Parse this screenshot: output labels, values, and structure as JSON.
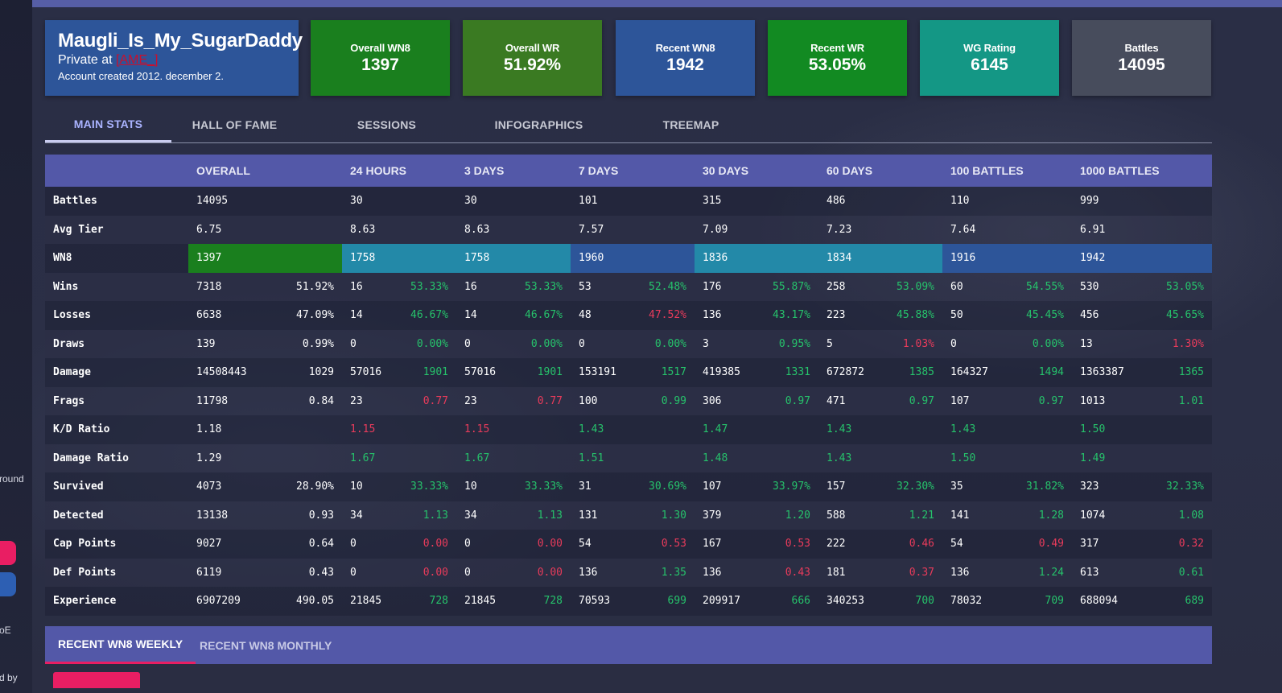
{
  "sidebar": {
    "partial_text_1": "round",
    "partial_text_2": "oE",
    "partial_text_3": "d by",
    "button_colors": [
      "#e91e63",
      "#2d5fb3"
    ]
  },
  "profile": {
    "name": "Maugli_Is_My_SugarDaddy",
    "clan_prefix": "Private at ",
    "clan_tag": "[AME_]",
    "created": "Account created 2012. december 2."
  },
  "summary_cards": [
    {
      "label": "Overall WN8",
      "value": "1397",
      "color": "#1a7f1e"
    },
    {
      "label": "Overall WR",
      "value": "51.92%",
      "color": "#3a7a22"
    },
    {
      "label": "Recent WN8",
      "value": "1942",
      "color": "#2d5599"
    },
    {
      "label": "Recent WR",
      "value": "53.05%",
      "color": "#128a22"
    },
    {
      "label": "WG Rating",
      "value": "6145",
      "color": "#149785"
    },
    {
      "label": "Battles",
      "value": "14095",
      "color": "#474c5c"
    }
  ],
  "tabs": [
    "MAIN STATS",
    "HALL OF FAME",
    "SESSIONS",
    "INFOGRAPHICS",
    "TREEMAP"
  ],
  "active_tab": "MAIN STATS",
  "table": {
    "headers": [
      "OVERALL",
      "24 HOURS",
      "3 DAYS",
      "7 DAYS",
      "30 DAYS",
      "60 DAYS",
      "100 BATTLES",
      "1000 BATTLES"
    ],
    "wn8_colors": [
      "#1a7f1e",
      "#2389a8",
      "#2389a8",
      "#2d5599",
      "#2389a8",
      "#2389a8",
      "#2d5599",
      "#2d5599"
    ],
    "rows": [
      {
        "label": "Battles",
        "cells": [
          {
            "v": "14095"
          },
          {
            "v": "30"
          },
          {
            "v": "30"
          },
          {
            "v": "101"
          },
          {
            "v": "315"
          },
          {
            "v": "486"
          },
          {
            "v": "110"
          },
          {
            "v": "999"
          }
        ]
      },
      {
        "label": "Avg Tier",
        "cells": [
          {
            "v": "6.75"
          },
          {
            "v": "8.63"
          },
          {
            "v": "8.63"
          },
          {
            "v": "7.57"
          },
          {
            "v": "7.09"
          },
          {
            "v": "7.23"
          },
          {
            "v": "7.64"
          },
          {
            "v": "6.91"
          }
        ]
      },
      {
        "label": "WN8",
        "cells": [
          {
            "v": "1397"
          },
          {
            "v": "1758"
          },
          {
            "v": "1758"
          },
          {
            "v": "1960"
          },
          {
            "v": "1836"
          },
          {
            "v": "1834"
          },
          {
            "v": "1916"
          },
          {
            "v": "1942"
          }
        ]
      },
      {
        "label": "Wins",
        "cells": [
          {
            "v": "7318",
            "p": "51.92%",
            "c": "w"
          },
          {
            "v": "16",
            "p": "53.33%",
            "c": "g"
          },
          {
            "v": "16",
            "p": "53.33%",
            "c": "g"
          },
          {
            "v": "53",
            "p": "52.48%",
            "c": "g"
          },
          {
            "v": "176",
            "p": "55.87%",
            "c": "g"
          },
          {
            "v": "258",
            "p": "53.09%",
            "c": "g"
          },
          {
            "v": "60",
            "p": "54.55%",
            "c": "g"
          },
          {
            "v": "530",
            "p": "53.05%",
            "c": "g"
          }
        ]
      },
      {
        "label": "Losses",
        "cells": [
          {
            "v": "6638",
            "p": "47.09%",
            "c": "w"
          },
          {
            "v": "14",
            "p": "46.67%",
            "c": "g"
          },
          {
            "v": "14",
            "p": "46.67%",
            "c": "g"
          },
          {
            "v": "48",
            "p": "47.52%",
            "c": "r"
          },
          {
            "v": "136",
            "p": "43.17%",
            "c": "g"
          },
          {
            "v": "223",
            "p": "45.88%",
            "c": "g"
          },
          {
            "v": "50",
            "p": "45.45%",
            "c": "g"
          },
          {
            "v": "456",
            "p": "45.65%",
            "c": "g"
          }
        ]
      },
      {
        "label": "Draws",
        "cells": [
          {
            "v": "139",
            "p": "0.99%",
            "c": "w"
          },
          {
            "v": "0",
            "p": "0.00%",
            "c": "g"
          },
          {
            "v": "0",
            "p": "0.00%",
            "c": "g"
          },
          {
            "v": "0",
            "p": "0.00%",
            "c": "g"
          },
          {
            "v": "3",
            "p": "0.95%",
            "c": "g"
          },
          {
            "v": "5",
            "p": "1.03%",
            "c": "r"
          },
          {
            "v": "0",
            "p": "0.00%",
            "c": "g"
          },
          {
            "v": "13",
            "p": "1.30%",
            "c": "r"
          }
        ]
      },
      {
        "label": "Damage",
        "cells": [
          {
            "v": "14508443",
            "p": "1029",
            "c": "w"
          },
          {
            "v": "57016",
            "p": "1901",
            "c": "g"
          },
          {
            "v": "57016",
            "p": "1901",
            "c": "g"
          },
          {
            "v": "153191",
            "p": "1517",
            "c": "g"
          },
          {
            "v": "419385",
            "p": "1331",
            "c": "g"
          },
          {
            "v": "672872",
            "p": "1385",
            "c": "g"
          },
          {
            "v": "164327",
            "p": "1494",
            "c": "g"
          },
          {
            "v": "1363387",
            "p": "1365",
            "c": "g"
          }
        ]
      },
      {
        "label": "Frags",
        "cells": [
          {
            "v": "11798",
            "p": "0.84",
            "c": "w"
          },
          {
            "v": "23",
            "p": "0.77",
            "c": "r"
          },
          {
            "v": "23",
            "p": "0.77",
            "c": "r"
          },
          {
            "v": "100",
            "p": "0.99",
            "c": "g"
          },
          {
            "v": "306",
            "p": "0.97",
            "c": "g"
          },
          {
            "v": "471",
            "p": "0.97",
            "c": "g"
          },
          {
            "v": "107",
            "p": "0.97",
            "c": "g"
          },
          {
            "v": "1013",
            "p": "1.01",
            "c": "g"
          }
        ]
      },
      {
        "label": "K/D Ratio",
        "cells": [
          {
            "v": "1.18",
            "c": "w"
          },
          {
            "v": "1.15",
            "c": "r"
          },
          {
            "v": "1.15",
            "c": "r"
          },
          {
            "v": "1.43",
            "c": "g"
          },
          {
            "v": "1.47",
            "c": "g"
          },
          {
            "v": "1.43",
            "c": "g"
          },
          {
            "v": "1.43",
            "c": "g"
          },
          {
            "v": "1.50",
            "c": "g"
          }
        ]
      },
      {
        "label": "Damage Ratio",
        "cells": [
          {
            "v": "1.29",
            "c": "w"
          },
          {
            "v": "1.67",
            "c": "g"
          },
          {
            "v": "1.67",
            "c": "g"
          },
          {
            "v": "1.51",
            "c": "g"
          },
          {
            "v": "1.48",
            "c": "g"
          },
          {
            "v": "1.43",
            "c": "g"
          },
          {
            "v": "1.50",
            "c": "g"
          },
          {
            "v": "1.49",
            "c": "g"
          }
        ]
      },
      {
        "label": "Survived",
        "cells": [
          {
            "v": "4073",
            "p": "28.90%",
            "c": "w"
          },
          {
            "v": "10",
            "p": "33.33%",
            "c": "g"
          },
          {
            "v": "10",
            "p": "33.33%",
            "c": "g"
          },
          {
            "v": "31",
            "p": "30.69%",
            "c": "g"
          },
          {
            "v": "107",
            "p": "33.97%",
            "c": "g"
          },
          {
            "v": "157",
            "p": "32.30%",
            "c": "g"
          },
          {
            "v": "35",
            "p": "31.82%",
            "c": "g"
          },
          {
            "v": "323",
            "p": "32.33%",
            "c": "g"
          }
        ]
      },
      {
        "label": "Detected",
        "cells": [
          {
            "v": "13138",
            "p": "0.93",
            "c": "w"
          },
          {
            "v": "34",
            "p": "1.13",
            "c": "g"
          },
          {
            "v": "34",
            "p": "1.13",
            "c": "g"
          },
          {
            "v": "131",
            "p": "1.30",
            "c": "g"
          },
          {
            "v": "379",
            "p": "1.20",
            "c": "g"
          },
          {
            "v": "588",
            "p": "1.21",
            "c": "g"
          },
          {
            "v": "141",
            "p": "1.28",
            "c": "g"
          },
          {
            "v": "1074",
            "p": "1.08",
            "c": "g"
          }
        ]
      },
      {
        "label": "Cap Points",
        "cells": [
          {
            "v": "9027",
            "p": "0.64",
            "c": "w"
          },
          {
            "v": "0",
            "p": "0.00",
            "c": "r"
          },
          {
            "v": "0",
            "p": "0.00",
            "c": "r"
          },
          {
            "v": "54",
            "p": "0.53",
            "c": "r"
          },
          {
            "v": "167",
            "p": "0.53",
            "c": "r"
          },
          {
            "v": "222",
            "p": "0.46",
            "c": "r"
          },
          {
            "v": "54",
            "p": "0.49",
            "c": "r"
          },
          {
            "v": "317",
            "p": "0.32",
            "c": "r"
          }
        ]
      },
      {
        "label": "Def Points",
        "cells": [
          {
            "v": "6119",
            "p": "0.43",
            "c": "w"
          },
          {
            "v": "0",
            "p": "0.00",
            "c": "r"
          },
          {
            "v": "0",
            "p": "0.00",
            "c": "r"
          },
          {
            "v": "136",
            "p": "1.35",
            "c": "g"
          },
          {
            "v": "136",
            "p": "0.43",
            "c": "r"
          },
          {
            "v": "181",
            "p": "0.37",
            "c": "r"
          },
          {
            "v": "136",
            "p": "1.24",
            "c": "g"
          },
          {
            "v": "613",
            "p": "0.61",
            "c": "g"
          }
        ]
      },
      {
        "label": "Experience",
        "cells": [
          {
            "v": "6907209",
            "p": "490.05",
            "c": "w"
          },
          {
            "v": "21845",
            "p": "728",
            "c": "g"
          },
          {
            "v": "21845",
            "p": "728",
            "c": "g"
          },
          {
            "v": "70593",
            "p": "699",
            "c": "g"
          },
          {
            "v": "209917",
            "p": "666",
            "c": "g"
          },
          {
            "v": "340253",
            "p": "700",
            "c": "g"
          },
          {
            "v": "78032",
            "p": "709",
            "c": "g"
          },
          {
            "v": "688094",
            "p": "689",
            "c": "g"
          }
        ]
      }
    ]
  },
  "bottom_tabs": [
    "RECENT WN8 WEEKLY",
    "RECENT WN8 MONTHLY"
  ],
  "active_bottom_tab": "RECENT WN8 WEEKLY"
}
